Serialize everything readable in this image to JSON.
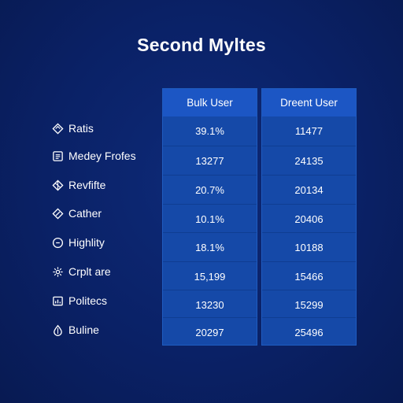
{
  "title": "Second Myltes",
  "columns": [
    {
      "label": "Bulk User"
    },
    {
      "label": "Dreent User"
    }
  ],
  "rows": [
    {
      "label": "Ratis",
      "icon": "diamond-icon",
      "values": [
        "39.1%",
        "11477"
      ]
    },
    {
      "label": "Medey Frofes",
      "icon": "document-icon",
      "values": [
        "13277",
        "24135"
      ]
    },
    {
      "label": "Revfifte",
      "icon": "gem-icon",
      "values": [
        "20.7%",
        "20134"
      ]
    },
    {
      "label": "Cather",
      "icon": "tag-icon",
      "values": [
        "10.1%",
        "20406"
      ]
    },
    {
      "label": "Highlity",
      "icon": "clock-icon",
      "values": [
        "18.1%",
        "10188"
      ]
    },
    {
      "label": "Crplt are",
      "icon": "gear-icon",
      "values": [
        "15,199",
        "15466"
      ]
    },
    {
      "label": "Politecs",
      "icon": "chart-icon",
      "values": [
        "13230",
        "15299"
      ]
    },
    {
      "label": "Buline",
      "icon": "drop-icon",
      "values": [
        "20297",
        "25496"
      ]
    }
  ]
}
